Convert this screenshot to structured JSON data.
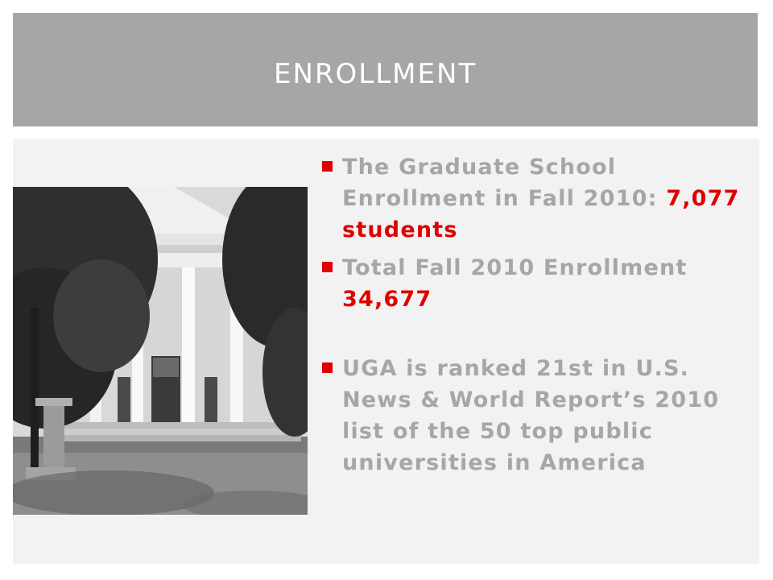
{
  "slide": {
    "title": "ENROLLMENT",
    "accent_color": "#e00000",
    "text_color": "#a6a6a6",
    "header_color": "#a6a6a6",
    "photo": {
      "description_icon": "building-columns-photo"
    },
    "bullets": [
      {
        "text": "The Graduate School Enrollment in Fall 2010: ",
        "highlight": "7,077 students"
      },
      {
        "text": "Total Fall 2010 Enrollment ",
        "highlight": "34,677"
      },
      {
        "text": "UGA is ranked 21st  in U.S. News & World Report’s 2010 list of the 50 top public universities in America",
        "highlight": ""
      }
    ]
  }
}
